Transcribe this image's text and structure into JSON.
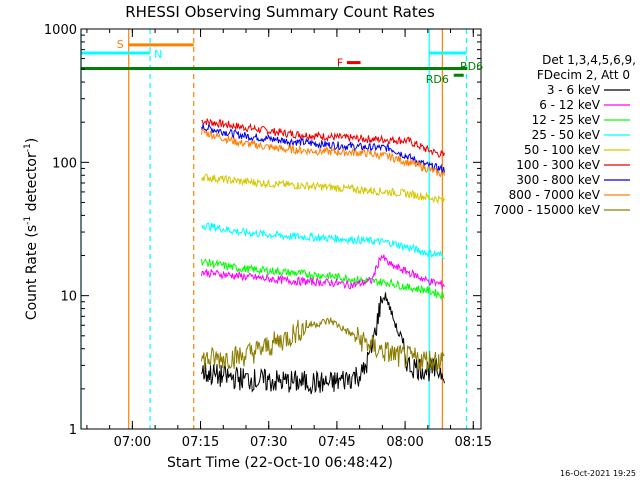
{
  "chart_data": {
    "type": "line",
    "title": "RHESSI Observing Summary Count Rates",
    "xlabel": "Start Time (22-Oct-10 06:48:42)",
    "ylabel_main": "Count Rate (s",
    "ylabel_sup1": "-1",
    "ylabel_mid": " detector",
    "ylabel_sup2": "-1",
    "ylabel_end": ")",
    "yscale": "log",
    "ylim": [
      1,
      1000
    ],
    "xlim_minutes": [
      0,
      88
    ],
    "x_ticks": [
      {
        "label": "07:00",
        "min": 11.3
      },
      {
        "label": "07:15",
        "min": 26.3
      },
      {
        "label": "07:30",
        "min": 41.3
      },
      {
        "label": "07:45",
        "min": 56.3
      },
      {
        "label": "08:00",
        "min": 71.3
      },
      {
        "label": "08:15",
        "min": 86.3
      }
    ],
    "y_ticks": [
      {
        "label": "1",
        "value": 1
      },
      {
        "label": "10",
        "value": 10
      },
      {
        "label": "100",
        "value": 100
      },
      {
        "label": "1000",
        "value": 1000
      }
    ],
    "legend": {
      "header1": "Det 1,3,4,5,6,9,",
      "header2": "FDecim 2, Att 0",
      "entries": [
        {
          "label": "3 - 6 keV",
          "color": "#000000"
        },
        {
          "label": "6 - 12 keV",
          "color": "#ff00ff"
        },
        {
          "label": "12 - 25 keV",
          "color": "#00ff00"
        },
        {
          "label": "25 - 50 keV",
          "color": "#00ffff"
        },
        {
          "label": "50 - 100 keV",
          "color": "#d4c800"
        },
        {
          "label": "100 - 300 keV",
          "color": "#ee0000"
        },
        {
          "label": "300 - 800 keV",
          "color": "#0000ee"
        },
        {
          "label": "800 - 7000 keV",
          "color": "#ff8000"
        },
        {
          "label": "7000 - 15000 keV",
          "color": "#8b7d00"
        }
      ]
    },
    "series": [
      {
        "color": "#ee0000",
        "x": [
          26.5,
          35,
          45,
          55,
          62,
          68,
          72,
          76,
          80
        ],
        "y": [
          205,
          185,
          165,
          155,
          150,
          148,
          145,
          125,
          112
        ]
      },
      {
        "color": "#0000ee",
        "x": [
          26.5,
          35,
          45,
          55,
          62,
          68,
          72,
          76,
          80
        ],
        "y": [
          185,
          160,
          145,
          135,
          130,
          128,
          110,
          95,
          88
        ]
      },
      {
        "color": "#ff8000",
        "x": [
          26.5,
          35,
          45,
          55,
          62,
          68,
          72,
          76,
          80
        ],
        "y": [
          170,
          140,
          125,
          120,
          118,
          110,
          100,
          90,
          80
        ]
      },
      {
        "color": "#d4c800",
        "x": [
          26.5,
          35,
          45,
          55,
          62,
          68,
          72,
          76,
          80
        ],
        "y": [
          78,
          72,
          68,
          65,
          62,
          60,
          58,
          55,
          52
        ]
      },
      {
        "color": "#00ffff",
        "x": [
          26.5,
          35,
          45,
          55,
          62,
          68,
          72,
          76,
          80
        ],
        "y": [
          34,
          30,
          28,
          27,
          26,
          25,
          23,
          21,
          20
        ]
      },
      {
        "color": "#00ff00",
        "x": [
          26.5,
          35,
          45,
          55,
          62,
          68,
          72,
          76,
          80
        ],
        "y": [
          18,
          16,
          15,
          14,
          13,
          12.5,
          11.5,
          11,
          10
        ]
      },
      {
        "color": "#ff00ff",
        "x": [
          26.5,
          35,
          45,
          55,
          60,
          64,
          66,
          68,
          72,
          76,
          80
        ],
        "y": [
          15,
          14,
          13,
          12.5,
          12,
          13,
          20,
          17,
          15,
          13,
          12
        ]
      },
      {
        "color": "#000000",
        "x": [
          26.5,
          30,
          40,
          55,
          62,
          64,
          66,
          67,
          68,
          70,
          72,
          76,
          80
        ],
        "y": [
          2.7,
          2.5,
          2.3,
          2.2,
          2.6,
          4,
          9,
          10,
          8,
          5,
          3,
          2.8,
          2.7
        ]
      },
      {
        "color": "#8b7d00",
        "x": [
          26.5,
          35,
          40,
          45,
          50,
          55,
          60,
          65,
          70,
          75,
          80
        ],
        "y": [
          3.3,
          3.5,
          4,
          4.8,
          6,
          6.5,
          5,
          4,
          3.5,
          3.3,
          3.3
        ]
      }
    ],
    "vertical_markers": [
      {
        "min": 0,
        "color": "#00ffff",
        "style": "solid"
      },
      {
        "min": 10.5,
        "color": "#ff8000",
        "style": "solid"
      },
      {
        "min": 15.2,
        "color": "#00ffff",
        "style": "dashed"
      },
      {
        "min": 24.8,
        "color": "#ff8000",
        "style": "dashed"
      },
      {
        "min": 76.6,
        "color": "#00ffff",
        "style": "solid"
      },
      {
        "min": 79.5,
        "color": "#ff8000",
        "style": "solid"
      },
      {
        "min": 84.8,
        "color": "#00ffff",
        "style": "dashed"
      }
    ],
    "flag_bars": [
      {
        "label": "S",
        "color": "#ff8000",
        "x0": 10.5,
        "x1": 24.8,
        "y": 760
      },
      {
        "label": "N",
        "color": "#00ffff",
        "x0": 0,
        "x1": 15.2,
        "y": 660
      },
      {
        "label": "",
        "color": "#00ffff",
        "x0": 76.6,
        "x1": 84.8,
        "y": 660
      },
      {
        "label": "F",
        "color": "#ee0000",
        "x0": 58.5,
        "x1": 61.5,
        "y": 560
      },
      {
        "label": "",
        "color": "#008000",
        "x0": 0,
        "x1": 85,
        "y": 505
      },
      {
        "label": "RD6",
        "color": "#008000",
        "x0": 82,
        "x1": 84.2,
        "y": 450
      }
    ],
    "rd6_right_label": "RD6"
  },
  "footer": {
    "timestamp": "16-Oct-2021 19:25"
  }
}
